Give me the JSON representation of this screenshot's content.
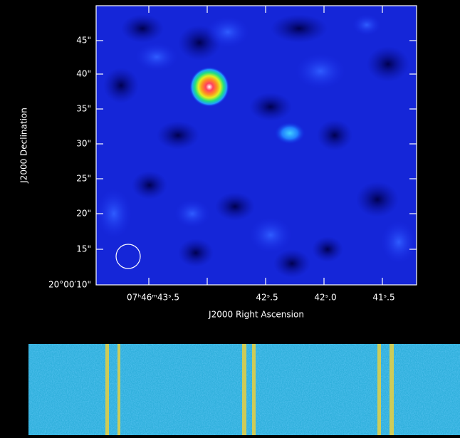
{
  "image": {
    "y_axis_label": "J2000 Declination",
    "x_axis_label": "J2000 Right Ascension",
    "y_tick_labels": [
      "45\"",
      "40\"",
      "35\"",
      "30\"",
      "25\"",
      "20\"",
      "15\"",
      "20°00′10\""
    ],
    "x_tick_labels": [
      "07ʰ46ᵐ43ˢ.5",
      "42ˢ.5",
      "42ˢ.0",
      "41ˢ.5"
    ]
  }
}
